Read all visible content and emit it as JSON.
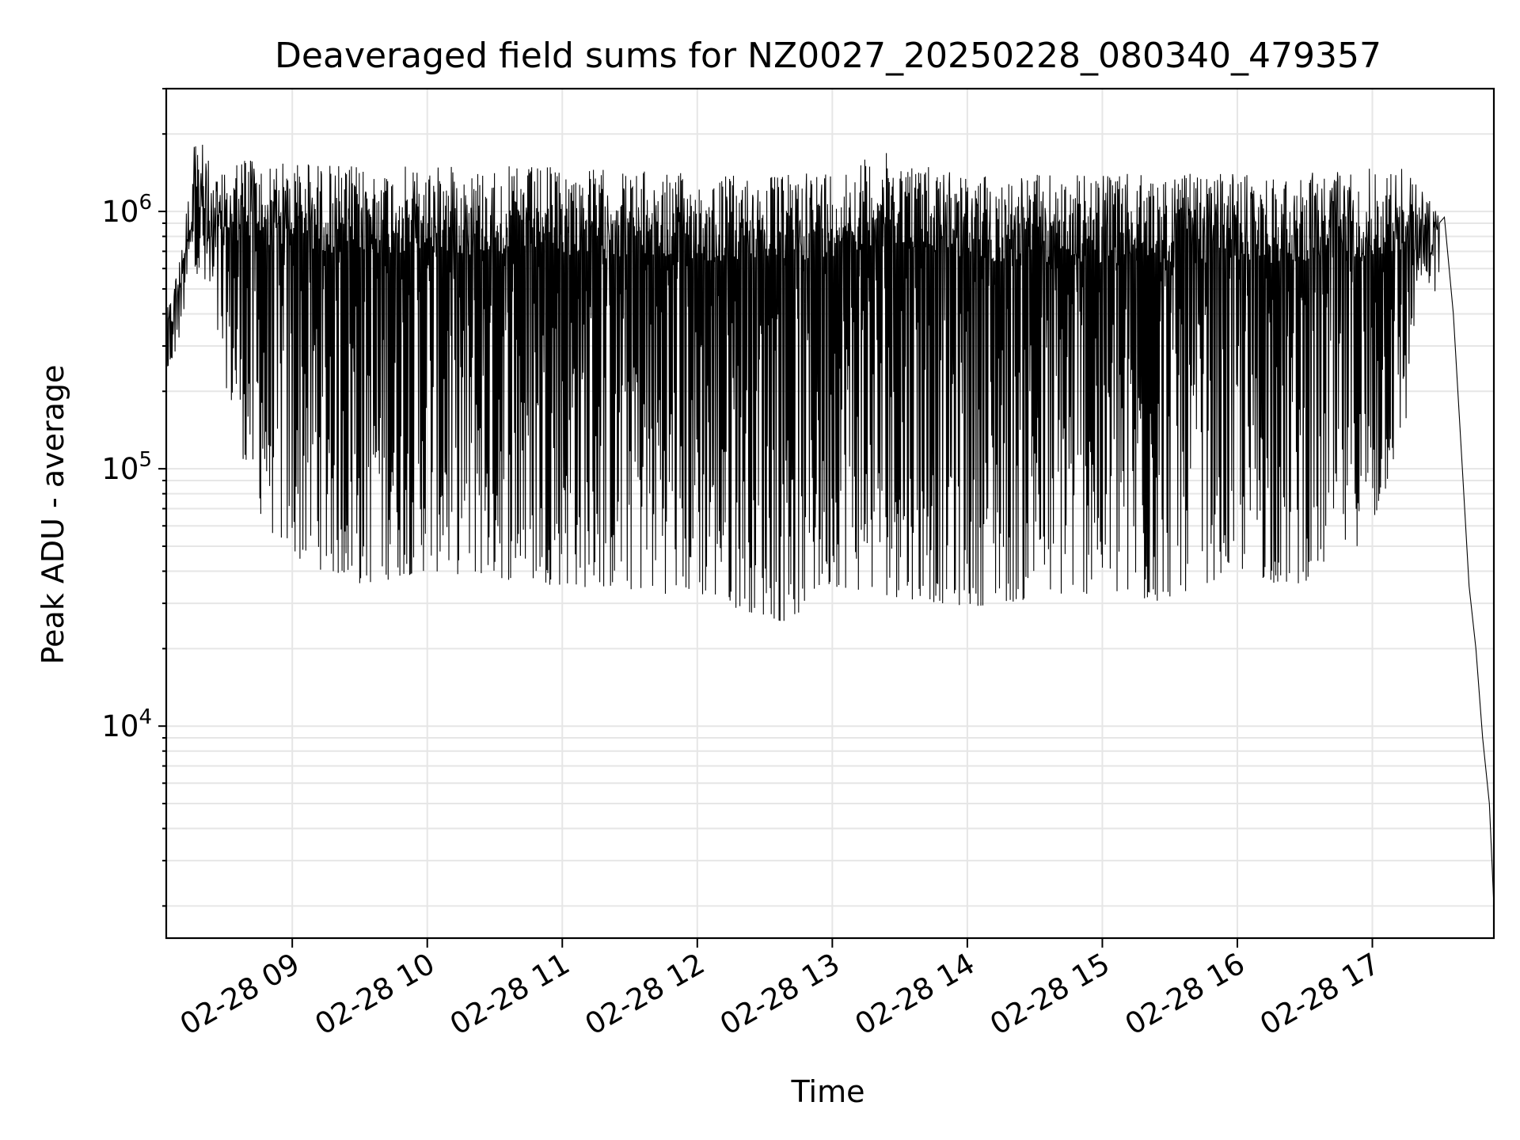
{
  "chart_data": {
    "type": "line",
    "title": "Deaveraged field sums for NZ0027_20250228_080340_479357",
    "xlabel": "Time",
    "ylabel": "Peak ADU - average",
    "y_scale": "log",
    "grid": true,
    "legend": "none",
    "colors": {
      "line": "#000000",
      "grid": "#e6e6e6",
      "background": "#ffffff"
    },
    "xlim": [
      "02-28 08:04",
      "02-28 17:54"
    ],
    "ylim": [
      1500,
      3000000
    ],
    "x_ticks": [
      {
        "time": "02-28 09:00",
        "label": "02-28 09"
      },
      {
        "time": "02-28 10:00",
        "label": "02-28 10"
      },
      {
        "time": "02-28 11:00",
        "label": "02-28 11"
      },
      {
        "time": "02-28 12:00",
        "label": "02-28 12"
      },
      {
        "time": "02-28 13:00",
        "label": "02-28 13"
      },
      {
        "time": "02-28 14:00",
        "label": "02-28 14"
      },
      {
        "time": "02-28 15:00",
        "label": "02-28 15"
      },
      {
        "time": "02-28 16:00",
        "label": "02-28 16"
      },
      {
        "time": "02-28 17:00",
        "label": "02-28 17"
      }
    ],
    "y_ticks": [
      {
        "value": 10000,
        "base": "10",
        "exp": "4"
      },
      {
        "value": 100000,
        "base": "10",
        "exp": "5"
      },
      {
        "value": 1000000,
        "base": "10",
        "exp": "6"
      }
    ],
    "series": [
      {
        "envelope": [
          {
            "time": "02-28 08:04",
            "upper": 400000,
            "lower": 300000
          },
          {
            "time": "02-28 08:10",
            "upper": 700000,
            "lower": 450000
          },
          {
            "time": "02-28 08:14",
            "upper": 1250000,
            "lower": 800000
          },
          {
            "time": "02-28 08:17",
            "upper": 2200000,
            "lower": 600000
          },
          {
            "time": "02-28 08:25",
            "upper": 1400000,
            "lower": 350000
          },
          {
            "time": "02-28 08:30",
            "upper": 1400000,
            "lower": 220000
          },
          {
            "time": "02-28 08:36",
            "upper": 1700000,
            "lower": 130000
          },
          {
            "time": "02-28 08:42",
            "upper": 1700000,
            "lower": 80000
          },
          {
            "time": "02-28 08:48",
            "upper": 1500000,
            "lower": 60000
          },
          {
            "time": "02-28 09:00",
            "upper": 1600000,
            "lower": 45000
          },
          {
            "time": "02-28 09:30",
            "upper": 1500000,
            "lower": 35000
          },
          {
            "time": "02-28 10:00",
            "upper": 1500000,
            "lower": 40000
          },
          {
            "time": "02-28 11:00",
            "upper": 1500000,
            "lower": 35000
          },
          {
            "time": "02-28 12:00",
            "upper": 1400000,
            "lower": 32000
          },
          {
            "time": "02-28 12:40",
            "upper": 1400000,
            "lower": 25000
          },
          {
            "time": "02-28 13:00",
            "upper": 1500000,
            "lower": 35000
          },
          {
            "time": "02-28 13:25",
            "upper": 1700000,
            "lower": 32000
          },
          {
            "time": "02-28 14:00",
            "upper": 1400000,
            "lower": 29000
          },
          {
            "time": "02-28 15:00",
            "upper": 1400000,
            "lower": 33000
          },
          {
            "time": "02-28 15:15",
            "upper": 1400000,
            "lower": 28000
          },
          {
            "time": "02-28 16:00",
            "upper": 1400000,
            "lower": 40000
          },
          {
            "time": "02-28 16:25",
            "upper": 1400000,
            "lower": 34000
          },
          {
            "time": "02-28 17:00",
            "upper": 1500000,
            "lower": 55000
          },
          {
            "time": "02-28 17:15",
            "upper": 1500000,
            "lower": 150000
          },
          {
            "time": "02-28 17:20",
            "upper": 1300000,
            "lower": 500000
          },
          {
            "time": "02-28 17:30",
            "upper": 1000000,
            "lower": 800000
          }
        ],
        "decay": [
          {
            "time": "02-28 17:32",
            "value": 950000
          },
          {
            "time": "02-28 17:36",
            "value": 400000
          },
          {
            "time": "02-28 17:40",
            "value": 100000
          },
          {
            "time": "02-28 17:43",
            "value": 35000
          },
          {
            "time": "02-28 17:46",
            "value": 20000
          },
          {
            "time": "02-28 17:49",
            "value": 9000
          },
          {
            "time": "02-28 17:52",
            "value": 5000
          },
          {
            "time": "02-28 17:54",
            "value": 2000
          }
        ]
      }
    ]
  }
}
